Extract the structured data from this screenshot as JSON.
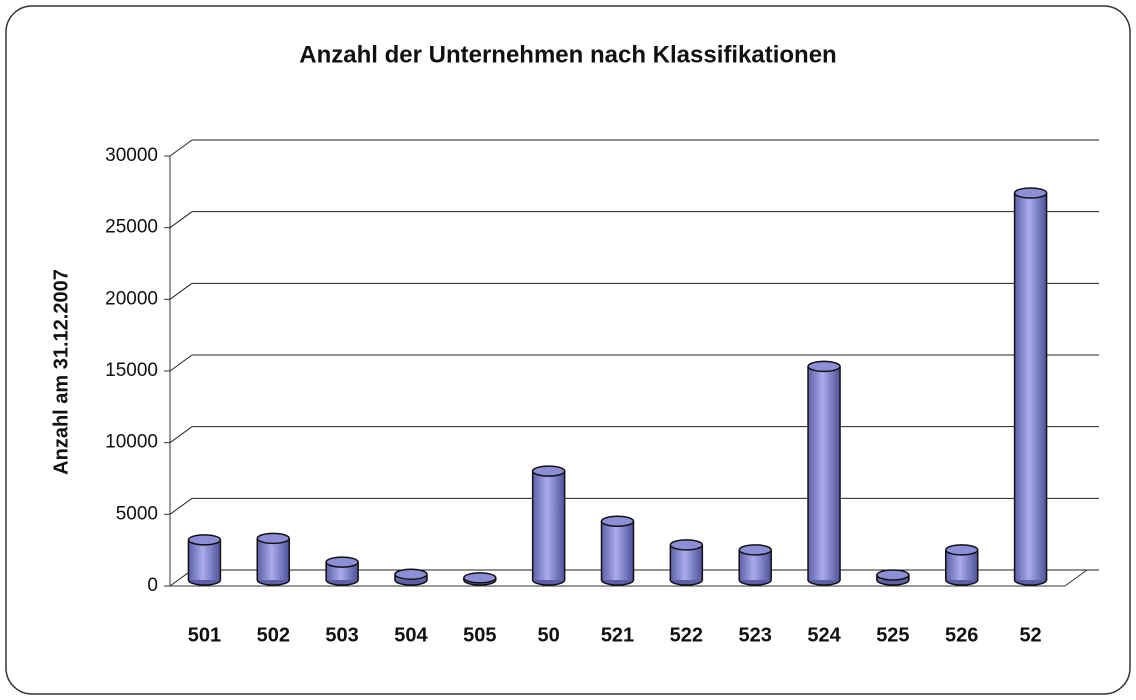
{
  "chart_data": {
    "type": "bar",
    "title": "Anzahl der Unternehmen nach Klassifikationen",
    "y_label": "Anzahl am 31.12.2007",
    "categories": [
      "501",
      "502",
      "503",
      "504",
      "505",
      "50",
      "521",
      "522",
      "523",
      "524",
      "525",
      "526",
      "52"
    ],
    "values": [
      2800,
      2900,
      1250,
      400,
      150,
      7600,
      4100,
      2450,
      2100,
      14900,
      350,
      2100,
      27000
    ],
    "color": "#8c8ed6",
    "ylim": [
      0,
      30000
    ],
    "yticks": [
      0,
      5000,
      10000,
      15000,
      20000,
      25000,
      30000
    ],
    "grid": true
  }
}
